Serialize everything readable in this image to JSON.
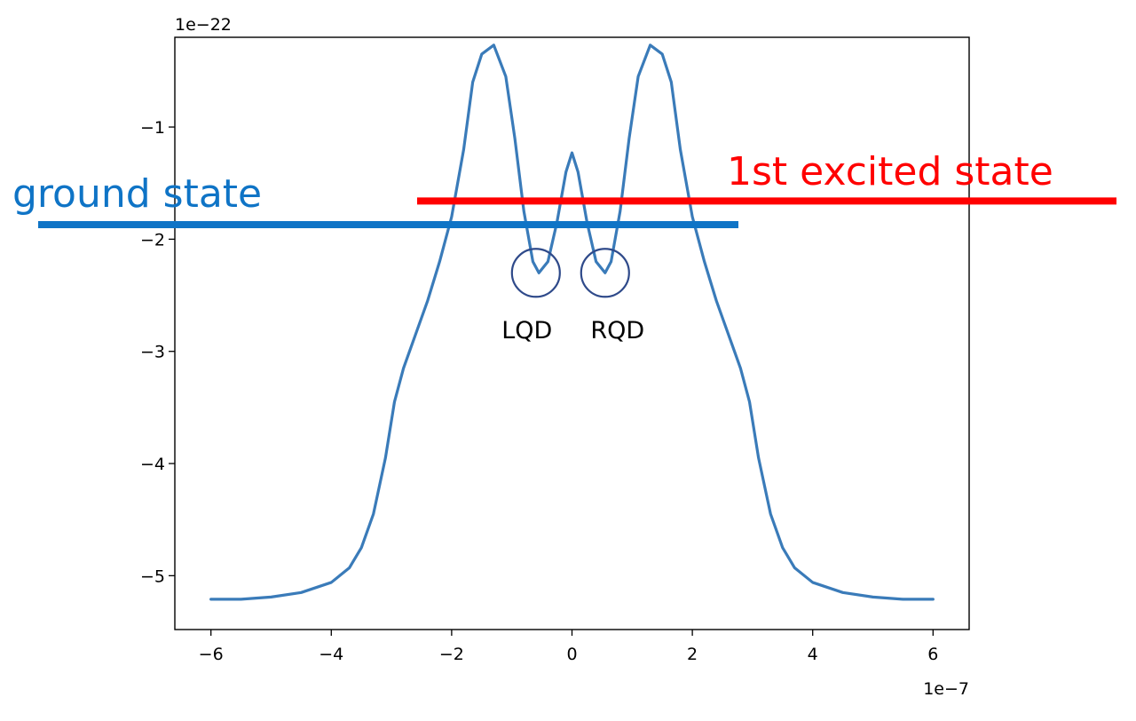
{
  "chart_data": {
    "type": "line",
    "title": "",
    "xlabel": "",
    "ylabel": "",
    "x_offset_label": "1e−7",
    "y_offset_label": "1e−22",
    "xlim": [
      -6.6,
      6.6
    ],
    "ylim": [
      -5.48,
      -0.2
    ],
    "x_ticks": [
      {
        "value": -6,
        "label": "−6"
      },
      {
        "value": -4,
        "label": "−4"
      },
      {
        "value": -2,
        "label": "−2"
      },
      {
        "value": 0,
        "label": "0"
      },
      {
        "value": 2,
        "label": "2"
      },
      {
        "value": 4,
        "label": "4"
      },
      {
        "value": 6,
        "label": "6"
      }
    ],
    "y_ticks": [
      {
        "value": -1,
        "label": "−1"
      },
      {
        "value": -2,
        "label": "−2"
      },
      {
        "value": -3,
        "label": "−3"
      },
      {
        "value": -4,
        "label": "−4"
      },
      {
        "value": -5,
        "label": "−5"
      }
    ],
    "series": [
      {
        "color": "#3a7bb9",
        "points": [
          [
            -6.0,
            -5.21
          ],
          [
            -5.5,
            -5.21
          ],
          [
            -5.0,
            -5.19
          ],
          [
            -4.5,
            -5.15
          ],
          [
            -4.0,
            -5.06
          ],
          [
            -3.7,
            -4.93
          ],
          [
            -3.5,
            -4.75
          ],
          [
            -3.3,
            -4.45
          ],
          [
            -3.1,
            -3.95
          ],
          [
            -2.95,
            -3.45
          ],
          [
            -2.8,
            -3.15
          ],
          [
            -2.6,
            -2.85
          ],
          [
            -2.4,
            -2.55
          ],
          [
            -2.2,
            -2.2
          ],
          [
            -2.0,
            -1.8
          ],
          [
            -1.8,
            -1.2
          ],
          [
            -1.65,
            -0.6
          ],
          [
            -1.5,
            -0.35
          ],
          [
            -1.3,
            -0.27
          ],
          [
            -1.1,
            -0.55
          ],
          [
            -0.95,
            -1.1
          ],
          [
            -0.8,
            -1.75
          ],
          [
            -0.65,
            -2.2
          ],
          [
            -0.55,
            -2.3
          ],
          [
            -0.4,
            -2.2
          ],
          [
            -0.25,
            -1.85
          ],
          [
            -0.1,
            -1.4
          ],
          [
            0.0,
            -1.23
          ],
          [
            0.1,
            -1.4
          ],
          [
            0.25,
            -1.85
          ],
          [
            0.4,
            -2.2
          ],
          [
            0.55,
            -2.3
          ],
          [
            0.65,
            -2.2
          ],
          [
            0.8,
            -1.75
          ],
          [
            0.95,
            -1.1
          ],
          [
            1.1,
            -0.55
          ],
          [
            1.3,
            -0.27
          ],
          [
            1.5,
            -0.35
          ],
          [
            1.65,
            -0.6
          ],
          [
            1.8,
            -1.2
          ],
          [
            2.0,
            -1.8
          ],
          [
            2.2,
            -2.2
          ],
          [
            2.4,
            -2.55
          ],
          [
            2.6,
            -2.85
          ],
          [
            2.8,
            -3.15
          ],
          [
            2.95,
            -3.45
          ],
          [
            3.1,
            -3.95
          ],
          [
            3.3,
            -4.45
          ],
          [
            3.5,
            -4.75
          ],
          [
            3.7,
            -4.93
          ],
          [
            4.0,
            -5.06
          ],
          [
            4.5,
            -5.15
          ],
          [
            5.0,
            -5.19
          ],
          [
            5.5,
            -5.21
          ],
          [
            6.0,
            -5.21
          ]
        ]
      }
    ],
    "annotations": {
      "circles": [
        {
          "label": "LQD",
          "x": -0.6,
          "y": -2.3,
          "color": "#2f4a8a"
        },
        {
          "label": "RQD",
          "x": 0.55,
          "y": -2.3,
          "color": "#2f4a8a"
        }
      ],
      "state_lines": [
        {
          "label": "ground state",
          "color": "#0f74c6",
          "y": -1.87
        },
        {
          "label": "1st excited state",
          "color": "#ff0000",
          "y": -1.66
        }
      ]
    }
  }
}
